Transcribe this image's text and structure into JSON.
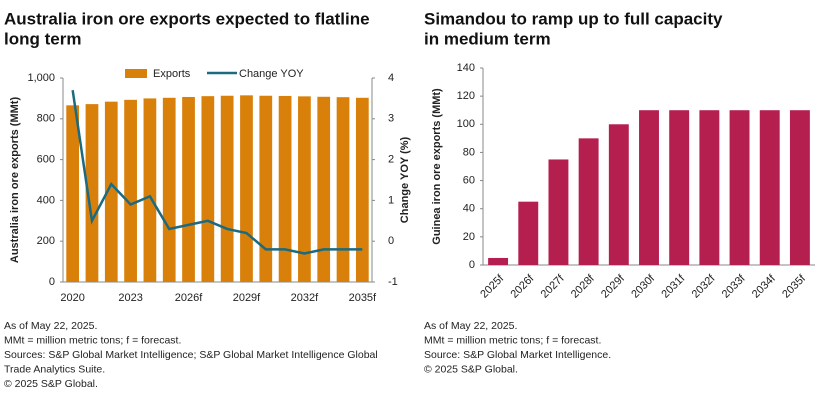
{
  "chart_data": [
    {
      "type": "combo",
      "title": [
        "Australia iron ore exports expected to flatline",
        "long term"
      ],
      "categories": [
        "2020",
        null,
        null,
        "2023",
        null,
        null,
        "2026f",
        null,
        null,
        "2029f",
        null,
        null,
        "2032f",
        null,
        null,
        "2035f"
      ],
      "series": [
        {
          "name": "Exports",
          "type": "bar",
          "color": "#d9800b",
          "values": [
            866,
            872,
            884,
            893,
            900,
            903,
            907,
            911,
            913,
            915,
            913,
            912,
            910,
            908,
            906,
            903
          ]
        },
        {
          "name": "Change YOY",
          "type": "line",
          "axis": "y2",
          "color": "#1b6a80",
          "values": [
            3.7,
            0.5,
            1.4,
            0.9,
            1.1,
            0.3,
            0.4,
            0.5,
            0.3,
            0.2,
            -0.2,
            -0.2,
            -0.3,
            -0.2,
            -0.2,
            -0.2
          ]
        }
      ],
      "ylim": [
        0,
        1000
      ],
      "yticks": [
        0,
        200,
        400,
        600,
        800,
        {
          "value": 1000,
          "label": "1,000"
        }
      ],
      "y2lim": [
        -1,
        4
      ],
      "y2ticks": [
        -1,
        0,
        1,
        2,
        3,
        4
      ],
      "y_label": "Australia iron ore exports (MMt)",
      "y2_label": "Change YOY (%)",
      "notes": [
        "As of May 22, 2025.",
        "MMt = million metric tons; f = forecast.",
        "Sources: S&P Global Market Intelligence; S&P Global Market Intelligence Global",
        "Trade Analytics Suite.",
        "© 2025 S&P Global."
      ]
    },
    {
      "type": "bar",
      "title": [
        "Simandou to ramp up to full capacity",
        "in medium term"
      ],
      "categories": [
        "2025f",
        "2026f",
        "2027f",
        "2028f",
        "2029f",
        "2030f",
        "2031f",
        "2032f",
        "2033f",
        "2034f",
        "2035f"
      ],
      "values": [
        5,
        45,
        75,
        90,
        100,
        110,
        110,
        110,
        110,
        110,
        110
      ],
      "color": "#b51f50",
      "ylim": [
        0,
        140
      ],
      "yticks": [
        0,
        20,
        40,
        60,
        80,
        100,
        120,
        140
      ],
      "y_label": "Guinea iron ore exports (MMt)",
      "notes": [
        "As of May 22, 2025.",
        "MMt = million metric tons; f = forecast.",
        "Source: S&P Global Market Intelligence.",
        "© 2025 S&P Global."
      ]
    }
  ]
}
